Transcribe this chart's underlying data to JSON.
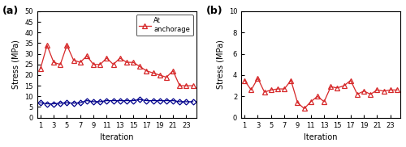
{
  "iterations_a": [
    1,
    2,
    3,
    4,
    5,
    6,
    7,
    8,
    9,
    10,
    11,
    12,
    13,
    14,
    15,
    16,
    17,
    18,
    19,
    20,
    21,
    22,
    23,
    24
  ],
  "red_a": [
    23,
    34,
    26,
    25,
    34,
    27,
    26,
    29,
    25,
    25,
    28,
    25,
    28,
    26,
    26,
    24,
    22,
    21,
    20,
    19,
    22,
    15,
    15,
    15
  ],
  "blue_a": [
    7,
    6.5,
    6.5,
    6.8,
    7,
    6.8,
    7,
    8,
    7.5,
    7.5,
    8,
    8,
    8,
    8,
    8,
    8.5,
    8,
    8,
    8,
    8,
    8,
    7.5,
    7.5,
    7.5
  ],
  "iterations_b": [
    1,
    2,
    3,
    4,
    5,
    6,
    7,
    8,
    9,
    10,
    11,
    12,
    13,
    14,
    15,
    16,
    17,
    18,
    19,
    20,
    21,
    22,
    23,
    24
  ],
  "red_b": [
    3.5,
    2.6,
    3.7,
    2.4,
    2.6,
    2.7,
    2.7,
    3.5,
    1.4,
    0.85,
    1.5,
    2.0,
    1.5,
    2.9,
    2.8,
    3.0,
    3.5,
    2.2,
    2.5,
    2.2,
    2.6,
    2.5,
    2.6,
    2.6
  ],
  "ylim_a": [
    0,
    50
  ],
  "ylim_b": [
    0,
    10
  ],
  "yticks_a": [
    0,
    5,
    10,
    15,
    20,
    25,
    30,
    35,
    40,
    45,
    50
  ],
  "yticks_b": [
    0,
    2,
    4,
    6,
    8,
    10
  ],
  "xticks": [
    1,
    3,
    5,
    7,
    9,
    11,
    13,
    15,
    17,
    19,
    21,
    23
  ],
  "xlabel": "Iteration",
  "ylabel": "Stress (MPa)",
  "legend_label_red": "At\nanchorage",
  "red_color": "#d62728",
  "blue_color": "#00008B",
  "label_a": "(a)",
  "label_b": "(b)"
}
